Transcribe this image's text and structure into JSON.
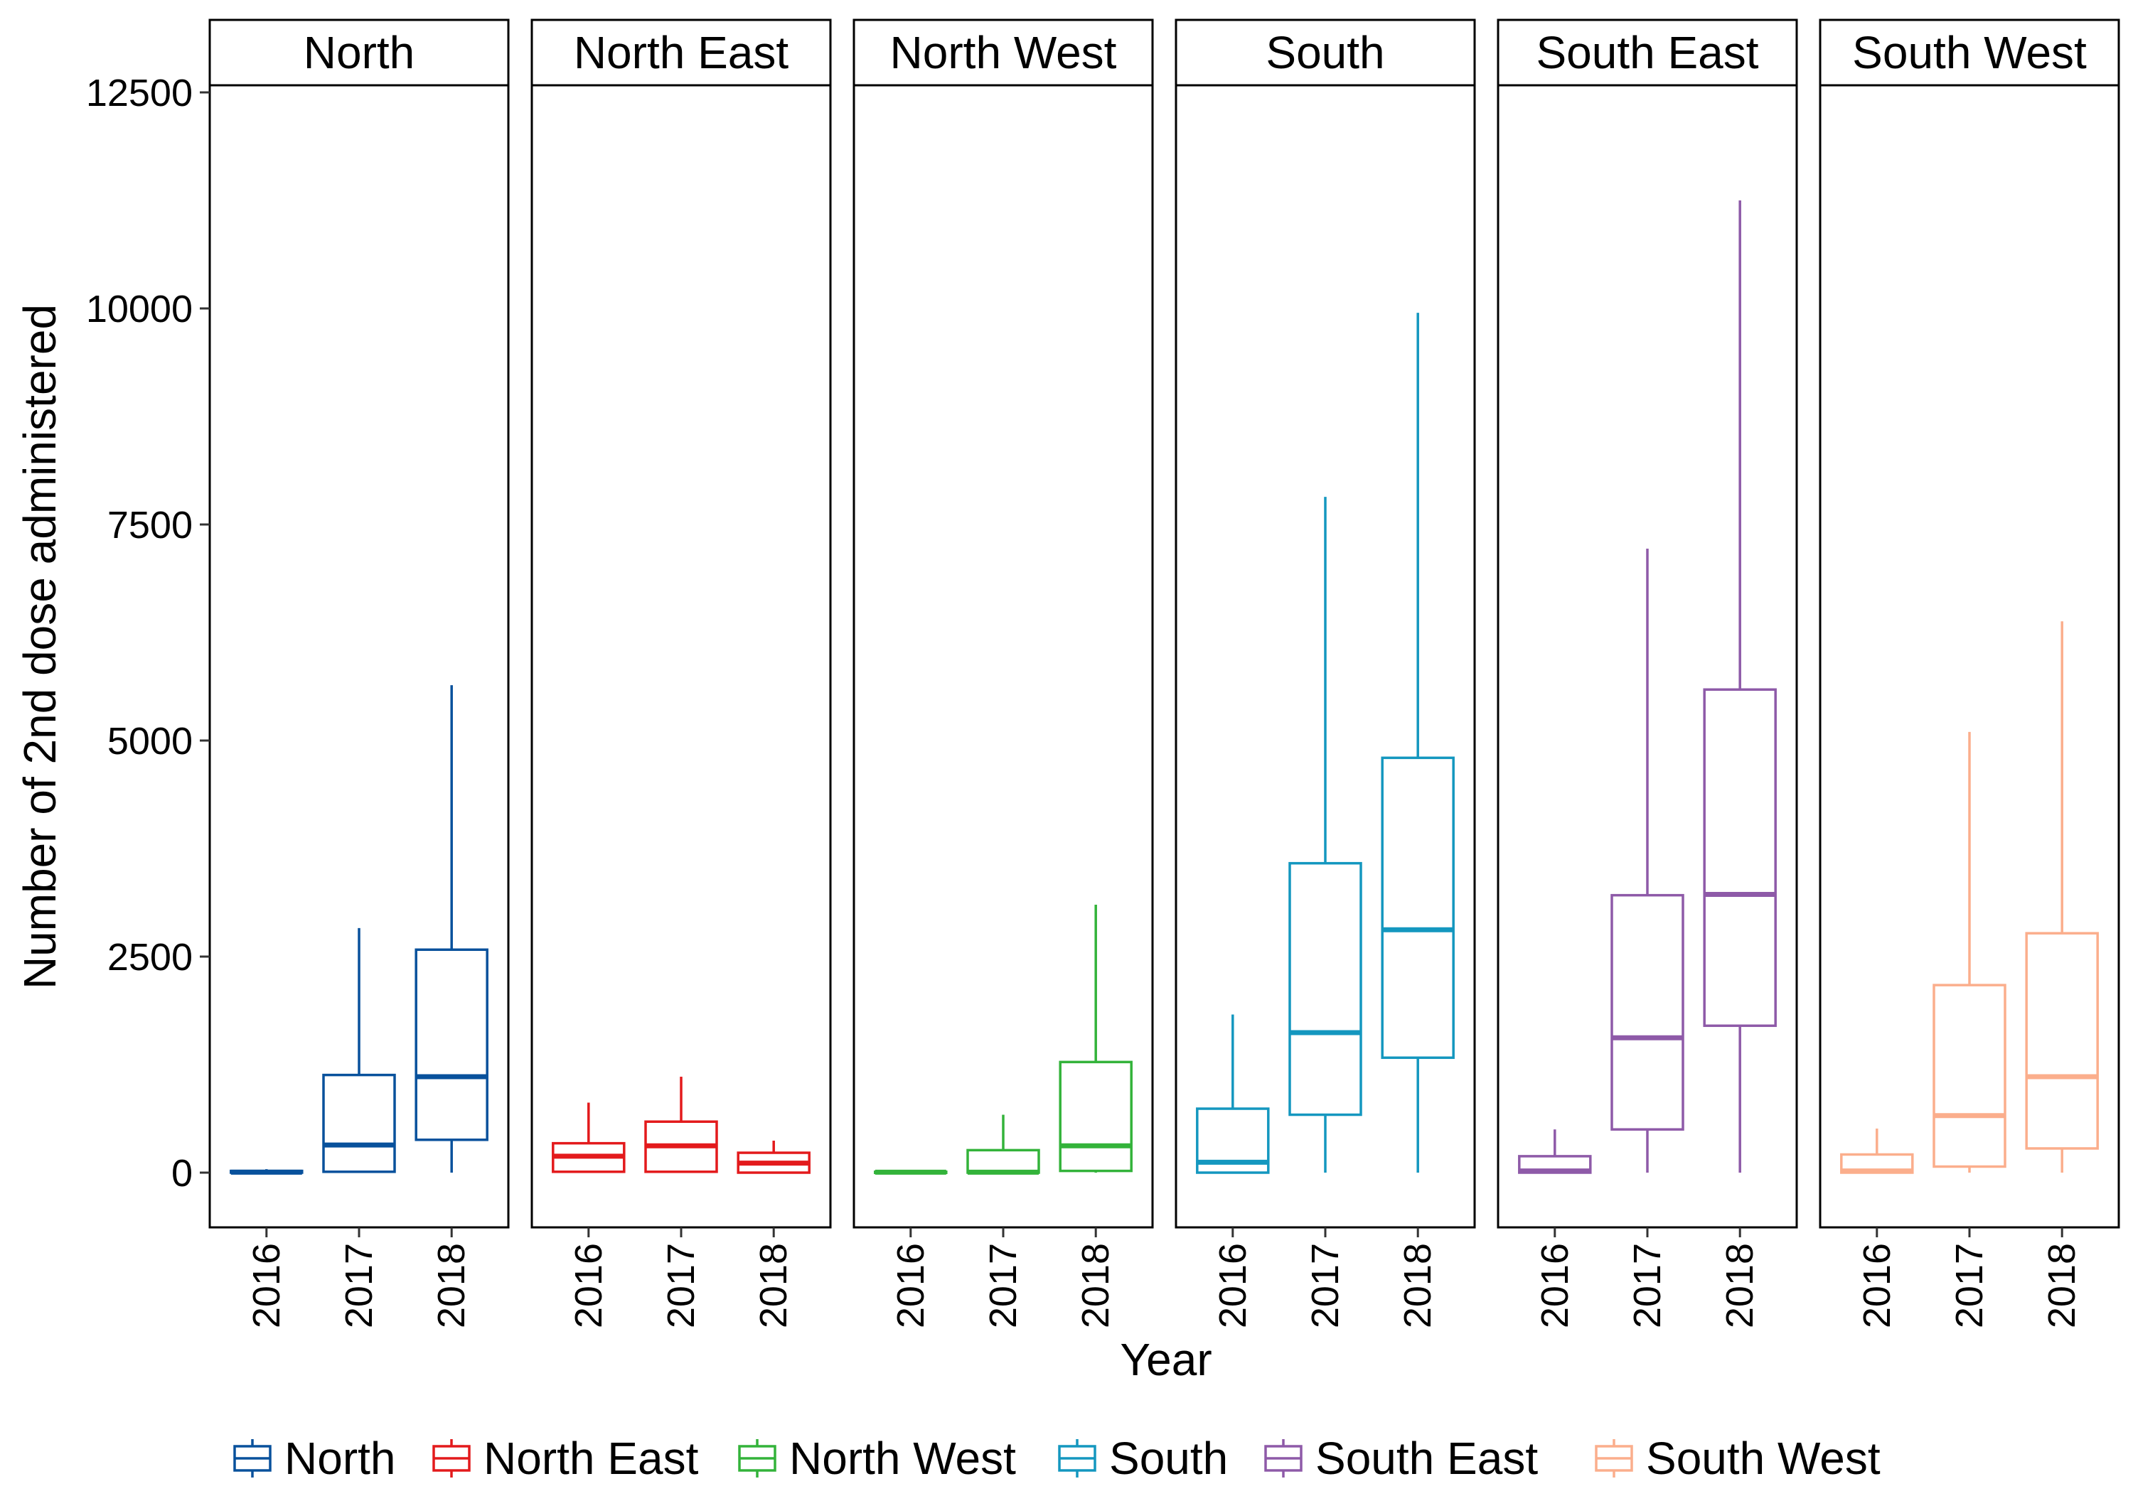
{
  "chart_data": {
    "type": "boxplot",
    "facet_by": "region",
    "xlabel": "Year",
    "ylabel": "Number of 2nd dose administered",
    "ylim": [
      -600,
      12600
    ],
    "yticks": [
      0,
      2500,
      5000,
      7500,
      10000,
      12500
    ],
    "ytick_labels": [
      "0",
      "2500",
      "5000",
      "7500",
      "10000",
      "12500"
    ],
    "categories": [
      "2016",
      "2017",
      "2018"
    ],
    "grid": false,
    "legend_position": "bottom",
    "panels": [
      {
        "name": "North",
        "color": "#08519c",
        "boxes": [
          {
            "year": "2016",
            "min": 0,
            "q1": 0,
            "median": 5,
            "q3": 20,
            "max": 40
          },
          {
            "year": "2017",
            "min": 0,
            "q1": 10,
            "median": 320,
            "q3": 1130,
            "max": 2830
          },
          {
            "year": "2018",
            "min": 0,
            "q1": 380,
            "median": 1110,
            "q3": 2580,
            "max": 5640
          }
        ]
      },
      {
        "name": "North East",
        "color": "#e31a1c",
        "boxes": [
          {
            "year": "2016",
            "min": 0,
            "q1": 10,
            "median": 190,
            "q3": 340,
            "max": 810
          },
          {
            "year": "2017",
            "min": 0,
            "q1": 10,
            "median": 310,
            "q3": 590,
            "max": 1110
          },
          {
            "year": "2018",
            "min": 0,
            "q1": 0,
            "median": 110,
            "q3": 230,
            "max": 370
          }
        ]
      },
      {
        "name": "North West",
        "color": "#33b33a",
        "boxes": [
          {
            "year": "2016",
            "min": 0,
            "q1": 0,
            "median": 5,
            "q3": 10,
            "max": 20
          },
          {
            "year": "2017",
            "min": 0,
            "q1": 0,
            "median": 5,
            "q3": 260,
            "max": 670
          },
          {
            "year": "2018",
            "min": 0,
            "q1": 20,
            "median": 310,
            "q3": 1280,
            "max": 3100
          }
        ]
      },
      {
        "name": "South",
        "color": "#1497bf",
        "boxes": [
          {
            "year": "2016",
            "min": 0,
            "q1": 0,
            "median": 120,
            "q3": 740,
            "max": 1830
          },
          {
            "year": "2017",
            "min": 0,
            "q1": 670,
            "median": 1620,
            "q3": 3580,
            "max": 7820
          },
          {
            "year": "2018",
            "min": 0,
            "q1": 1330,
            "median": 2810,
            "q3": 4800,
            "max": 9950
          }
        ]
      },
      {
        "name": "South East",
        "color": "#8e5aa8",
        "boxes": [
          {
            "year": "2016",
            "min": 0,
            "q1": 0,
            "median": 20,
            "q3": 190,
            "max": 500
          },
          {
            "year": "2017",
            "min": 0,
            "q1": 500,
            "median": 1560,
            "q3": 3210,
            "max": 7220
          },
          {
            "year": "2018",
            "min": 0,
            "q1": 1700,
            "median": 3220,
            "q3": 5590,
            "max": 11250
          }
        ]
      },
      {
        "name": "South West",
        "color": "#fbae8c",
        "boxes": [
          {
            "year": "2016",
            "min": 0,
            "q1": 0,
            "median": 20,
            "q3": 210,
            "max": 510
          },
          {
            "year": "2017",
            "min": 0,
            "q1": 70,
            "median": 660,
            "q3": 2170,
            "max": 5100
          },
          {
            "year": "2018",
            "min": 0,
            "q1": 280,
            "median": 1110,
            "q3": 2770,
            "max": 6380
          }
        ]
      }
    ]
  }
}
